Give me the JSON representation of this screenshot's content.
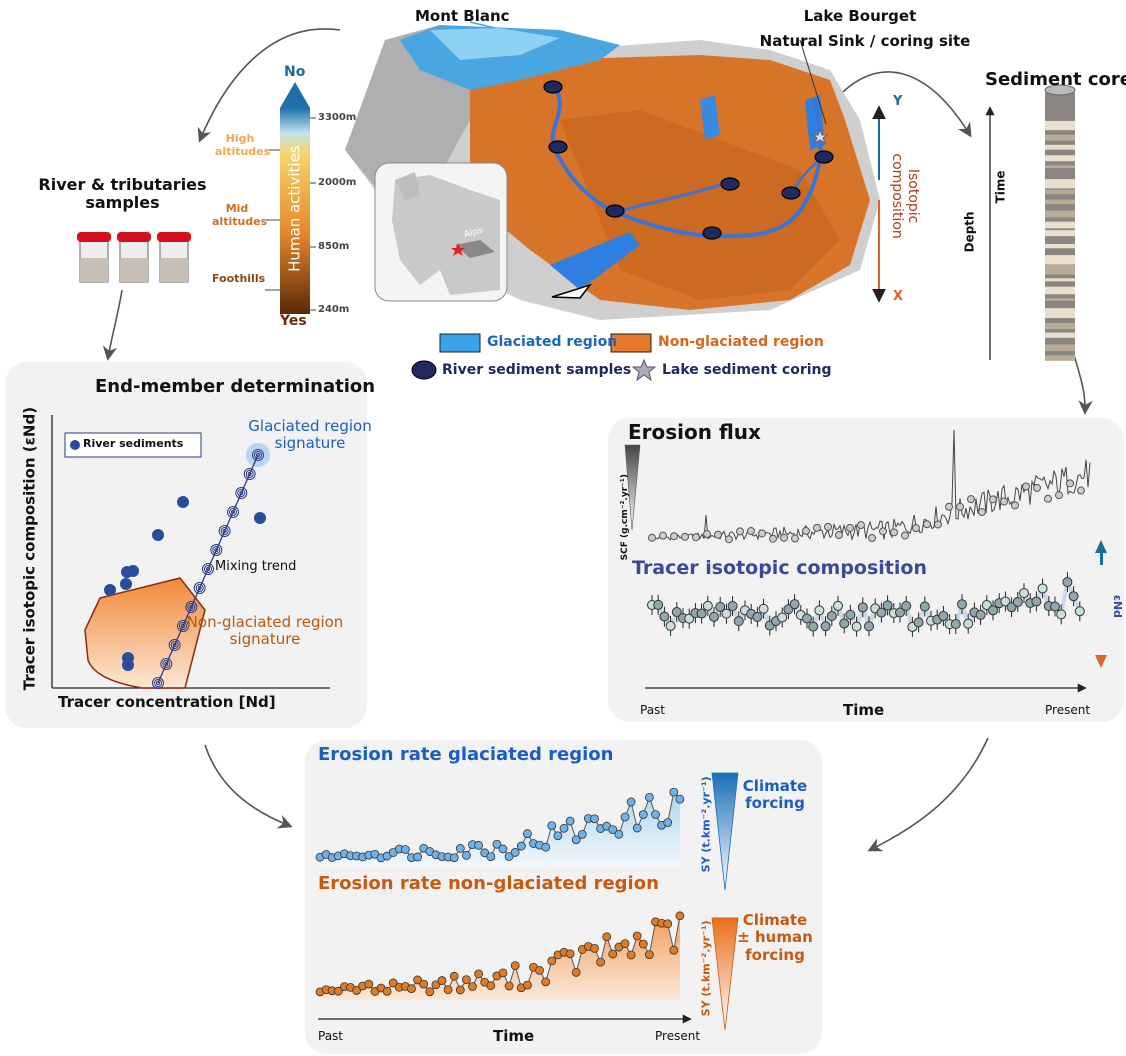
{
  "map": {
    "mont_blanc": "Mont Blanc",
    "lake_bourget": "Lake Bourget",
    "coring_site": "Natural Sink / coring site",
    "alps": "Alps",
    "axis_y": "Y",
    "axis_x": "X",
    "isotopic_axis": "Isotopic composition"
  },
  "altitude_bar": {
    "top": "No",
    "bottom": "Yes",
    "title": "Human activities",
    "zones": [
      "High altitudes",
      "Mid altitudes",
      "Foothills"
    ],
    "elevations": [
      "3300m",
      "2000m",
      "850m",
      "240m"
    ]
  },
  "river_samples": {
    "title": "River & tributaries samples"
  },
  "sediment_core": {
    "title": "Sediment core",
    "depth": "Depth",
    "time": "Time"
  },
  "legend": {
    "glaciated": "Glaciated region",
    "non_glaciated": "Non-glaciated region",
    "river_samples": "River sediment samples",
    "lake_coring": "Lake sediment coring"
  },
  "end_member": {
    "title": "End-member determination",
    "legend": "River sediments",
    "glaciated_signature": "Glaciated region signature",
    "mixing_trend": "Mixing trend",
    "non_glaciated_signature": "Non-glaciated region signature",
    "y_label": "Tracer isotopic composition (εNd)",
    "x_label": "Tracer concentration [Nd]"
  },
  "erosion_panel": {
    "flux_title": "Erosion flux",
    "flux_axis": "SCF (g.cm⁻².yr⁻¹)",
    "tracer_title": "Tracer isotopic composition",
    "tracer_axis": "εNd",
    "past": "Past",
    "time": "Time",
    "present": "Present"
  },
  "rate_panel": {
    "glaciated_title": "Erosion rate glaciated region",
    "glaciated_forcing": "Climate forcing",
    "glaciated_axis": "SY (t.km⁻².yr⁻¹)",
    "non_glaciated_title": "Erosion rate non-glaciated region",
    "non_glaciated_forcing": "Climate ± human forcing",
    "non_glaciated_axis": "SY (t.km⁻².yr⁻¹)",
    "past": "Past",
    "time": "Time",
    "present": "Present"
  }
}
